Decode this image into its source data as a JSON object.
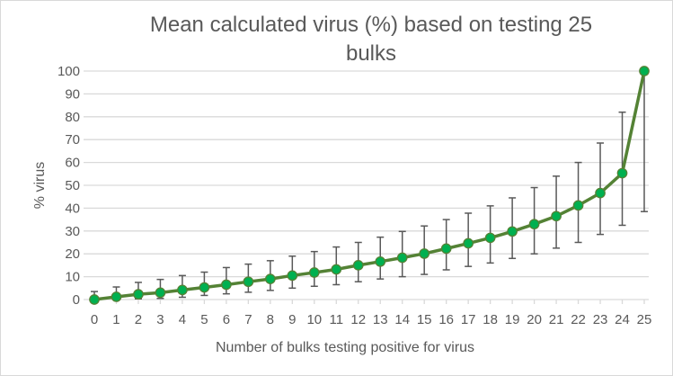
{
  "chart_data": {
    "type": "line",
    "title_lines": [
      "Mean calculated virus (%) based on testing 25",
      "bulks"
    ],
    "xlabel": "Number of bulks testing positive for virus",
    "ylabel": "% virus",
    "x": [
      0,
      1,
      2,
      3,
      4,
      5,
      6,
      7,
      8,
      9,
      10,
      11,
      12,
      13,
      14,
      15,
      16,
      17,
      18,
      19,
      20,
      21,
      22,
      23,
      24,
      25
    ],
    "series": [
      {
        "name": "Mean calculated virus (%)",
        "values": [
          0,
          1.2,
          2.3,
          3,
          4.2,
          5.3,
          6.5,
          7.8,
          9,
          10.5,
          11.8,
          13.2,
          15,
          16.6,
          18.3,
          20.1,
          22.3,
          24.6,
          27,
          29.8,
          33,
          36.5,
          41.2,
          46.6,
          55.3,
          100
        ],
        "error_lower": [
          0,
          0,
          0.3,
          0.5,
          1,
          1.8,
          2.5,
          3.2,
          4,
          5,
          5.8,
          6.5,
          7.8,
          9,
          10,
          11,
          13,
          14.5,
          16,
          18,
          20,
          22.5,
          25,
          28.5,
          32.5,
          38.5
        ],
        "error_upper": [
          3.5,
          5.5,
          7.5,
          8.8,
          10.5,
          12,
          14,
          15.5,
          17,
          19,
          21,
          23,
          25,
          27.3,
          29.8,
          32.2,
          35,
          37.8,
          41,
          44.5,
          49,
          54,
          60,
          68.5,
          82,
          100
        ],
        "line_color": "#548235",
        "marker_color": "#00b050"
      }
    ],
    "ylim": [
      0,
      100
    ],
    "yticks": [
      0,
      10,
      20,
      30,
      40,
      50,
      60,
      70,
      80,
      90,
      100
    ],
    "grid": true,
    "legend": "none"
  }
}
